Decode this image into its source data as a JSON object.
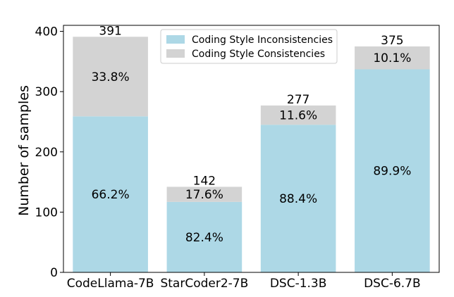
{
  "chart_data": {
    "type": "bar",
    "stacked": true,
    "categories": [
      "CodeLlama-7B",
      "StarCoder2-7B",
      "DSC-1.3B",
      "DSC-6.7B"
    ],
    "totals": [
      391,
      142,
      277,
      375
    ],
    "series": [
      {
        "name": "Coding Style Inconsistencies",
        "color": "#add8e6",
        "values": [
          259,
          117,
          245,
          337
        ],
        "labels": [
          "66.2%",
          "82.4%",
          "88.4%",
          "89.9%"
        ]
      },
      {
        "name": "Coding Style Consistencies",
        "color": "#d3d3d3",
        "values": [
          132,
          25,
          32,
          38
        ],
        "labels": [
          "33.8%",
          "17.6%",
          "11.6%",
          "10.1%"
        ]
      }
    ],
    "ylabel": "Number of samples",
    "xlabel": "",
    "ylim": [
      0,
      410
    ],
    "yticks": [
      0,
      100,
      200,
      300,
      400
    ],
    "grid": false,
    "legend_position": "top-right"
  }
}
